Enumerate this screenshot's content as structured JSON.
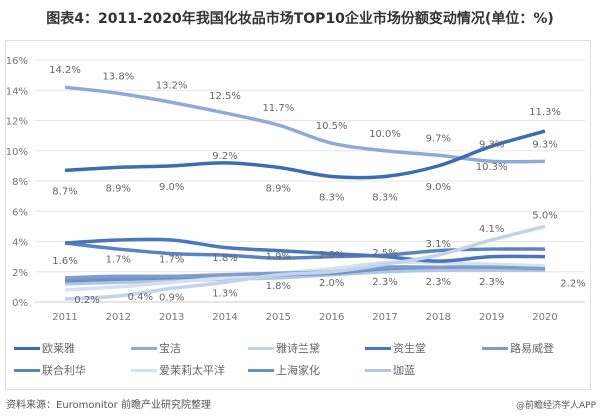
{
  "title": "图表4：2011-2020年我国化妆品市场TOP10企业市场份额变动情况(单位：%)",
  "source": "资料来源：Euromonitor 前瞻产业研究院整理",
  "credit": "@前瞻经济学人APP",
  "chart_data": {
    "type": "line",
    "title": "图表4：2011-2020年我国化妆品市场TOP10企业市场份额变动情况(单位：%)",
    "x": [
      "2011",
      "2012",
      "2013",
      "2014",
      "2015",
      "2016",
      "2017",
      "2018",
      "2019",
      "2020"
    ],
    "yticks": [
      "0%",
      "2%",
      "4%",
      "6%",
      "8%",
      "10%",
      "12%",
      "14%",
      "16%"
    ],
    "ylim": [
      0,
      16
    ],
    "grid": true,
    "legend": "bottom",
    "series": [
      {
        "name": "欧莱雅",
        "color": "#3d6cb0",
        "labeled": true,
        "values": [
          8.7,
          8.9,
          9.0,
          9.2,
          8.9,
          8.3,
          8.3,
          9.0,
          10.3,
          11.3
        ]
      },
      {
        "name": "宝洁",
        "color": "#8eabd6",
        "labeled": true,
        "values": [
          14.2,
          13.8,
          13.2,
          12.5,
          11.7,
          10.5,
          10.0,
          9.7,
          9.3,
          9.3
        ]
      },
      {
        "name": "雅诗兰黛",
        "color": "#c3d3ea",
        "labeled": true,
        "values": [
          0.2,
          0.4,
          0.9,
          1.3,
          1.8,
          2.0,
          2.5,
          3.1,
          4.1,
          5.0
        ]
      },
      {
        "name": "资生堂",
        "color": "#4a77b8",
        "labeled": false,
        "values": [
          3.9,
          4.1,
          4.1,
          3.6,
          3.4,
          3.2,
          3.0,
          2.7,
          3.0,
          3.0
        ]
      },
      {
        "name": "路易威登",
        "color": "#7e9dcb",
        "labeled": true,
        "values": [
          1.6,
          1.7,
          1.7,
          1.8,
          1.9,
          2.0,
          2.3,
          2.3,
          2.3,
          2.2
        ]
      },
      {
        "name": "联合利华",
        "color": "#5a83c0",
        "labeled": false,
        "values": [
          3.9,
          3.5,
          3.2,
          3.1,
          2.9,
          3.0,
          3.1,
          3.4,
          3.5,
          3.5
        ]
      },
      {
        "name": "爱茉莉太平洋",
        "color": "#d6e1f0",
        "labeled": false,
        "values": [
          0.8,
          1.0,
          1.3,
          1.6,
          1.9,
          2.2,
          2.6,
          2.6,
          2.5,
          2.4
        ]
      },
      {
        "name": "上海家化",
        "color": "#6b91cb",
        "labeled": false,
        "values": [
          1.4,
          1.5,
          1.6,
          1.7,
          1.8,
          1.9,
          2.2,
          2.3,
          2.3,
          2.3
        ]
      },
      {
        "name": "珈蓝",
        "color": "#b2c6e3",
        "labeled": false,
        "values": [
          1.2,
          1.3,
          1.4,
          1.5,
          1.6,
          1.8,
          2.0,
          2.1,
          2.1,
          2.1
        ]
      }
    ]
  }
}
